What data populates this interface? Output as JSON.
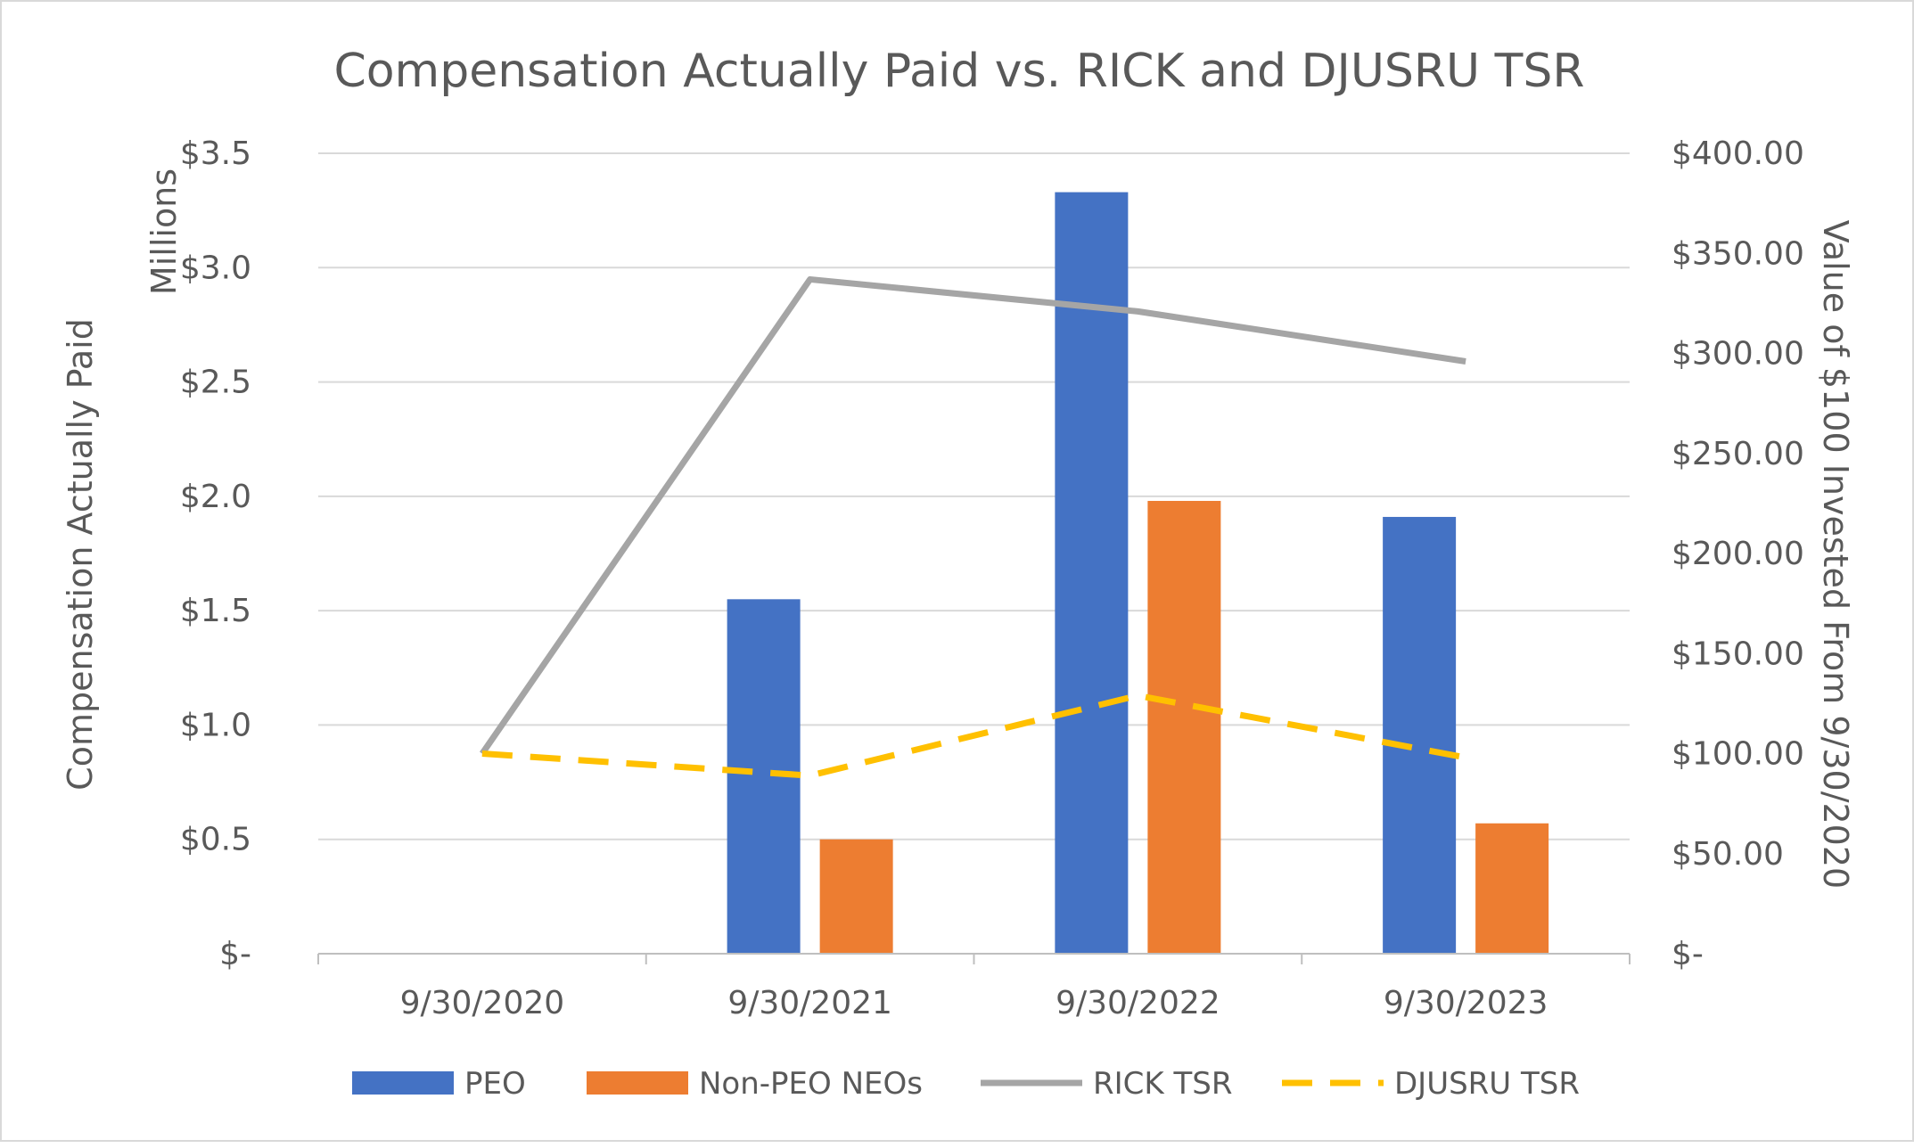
{
  "chart_data": {
    "type": "bar",
    "title": "Compensation Actually Paid vs. RICK and DJUSRU TSR",
    "categories": [
      "9/30/2020",
      "9/30/2021",
      "9/30/2022",
      "9/30/2023"
    ],
    "y_left": {
      "label": "Compensation Actually Paid",
      "units_label": "Millions",
      "range": [
        0,
        3.5
      ],
      "ticks": [
        0,
        0.5,
        1.0,
        1.5,
        2.0,
        2.5,
        3.0,
        3.5
      ],
      "tick_labels": [
        "$-",
        "$0.5",
        "$1.0",
        "$1.5",
        "$2.0",
        "$2.5",
        "$3.0",
        "$3.5"
      ]
    },
    "y_right": {
      "label": "Value of $100 Invested From 9/30/2020",
      "range": [
        0,
        400
      ],
      "ticks": [
        0,
        50,
        100,
        150,
        200,
        250,
        300,
        350,
        400
      ],
      "tick_labels": [
        "$-",
        "$50.00",
        "$100.00",
        "$150.00",
        "$200.00",
        "$250.00",
        "$300.00",
        "$350.00",
        "$400.00"
      ]
    },
    "series": [
      {
        "name": "PEO",
        "kind": "bar",
        "axis": "left",
        "color": "#4472c4",
        "values": [
          null,
          1.55,
          3.33,
          1.91
        ]
      },
      {
        "name": "Non-PEO NEOs",
        "kind": "bar",
        "axis": "left",
        "color": "#ed7d31",
        "values": [
          null,
          0.5,
          1.98,
          0.57
        ]
      },
      {
        "name": "RICK TSR",
        "kind": "line",
        "axis": "right",
        "color": "#a5a5a5",
        "style": "solid",
        "values": [
          100,
          337,
          321,
          296
        ]
      },
      {
        "name": "DJUSRU TSR",
        "kind": "line",
        "axis": "right",
        "color": "#ffc000",
        "style": "dashed",
        "values": [
          100,
          89,
          129,
          98
        ]
      }
    ],
    "grid": true,
    "legend_position": "bottom"
  }
}
